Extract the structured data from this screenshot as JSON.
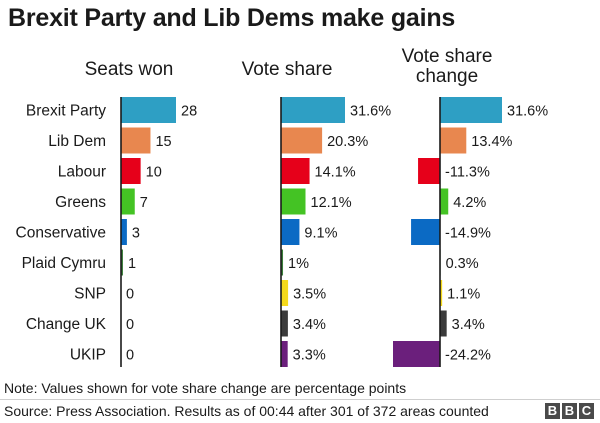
{
  "title": "Brexit Party and Lib Dems make gains",
  "note": "Note: Values shown for vote share change are percentage points",
  "source": "Source: Press Association. Results as of 00:44 after 301 of 372 areas counted",
  "logo": {
    "letters": [
      "B",
      "B",
      "C"
    ]
  },
  "chart_data": {
    "type": "bar",
    "orientation": "horizontal",
    "categories": [
      "Brexit Party",
      "Lib Dem",
      "Labour",
      "Greens",
      "Conservative",
      "Plaid Cymru",
      "SNP",
      "Change UK",
      "UKIP"
    ],
    "colors": [
      "#2e9fc4",
      "#e8874f",
      "#e6001a",
      "#44c324",
      "#0b6ac4",
      "#3a7f3a",
      "#f5d91a",
      "#3b3b3b",
      "#6b1f7c"
    ],
    "panels": [
      {
        "title": [
          "Seats won"
        ],
        "values": [
          28,
          15,
          10,
          7,
          3,
          1,
          0,
          0,
          0
        ],
        "labels": [
          "28",
          "15",
          "10",
          "7",
          "3",
          "1",
          "0",
          "0",
          "0"
        ],
        "xlim": [
          0,
          28
        ]
      },
      {
        "title": [
          "Vote share"
        ],
        "values": [
          31.6,
          20.3,
          14.1,
          12.1,
          9.1,
          1.0,
          3.5,
          3.4,
          3.3
        ],
        "labels": [
          "31.6%",
          "20.3%",
          "14.1%",
          "12.1%",
          "9.1%",
          "1%",
          "3.5%",
          "3.4%",
          "3.3%"
        ],
        "xlim": [
          0,
          31.6
        ]
      },
      {
        "title": [
          "Vote share",
          "change"
        ],
        "values": [
          31.6,
          13.4,
          -11.3,
          4.2,
          -14.9,
          0.3,
          1.1,
          3.4,
          -24.2
        ],
        "labels": [
          "31.6%",
          "13.4%",
          "-11.3%",
          "4.2%",
          "-14.9%",
          "0.3%",
          "1.1%",
          "3.4%",
          "-24.2%"
        ],
        "xlim": [
          -24.2,
          31.6
        ]
      }
    ]
  }
}
